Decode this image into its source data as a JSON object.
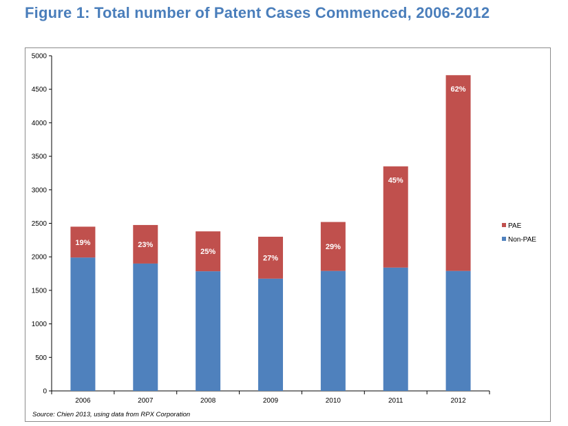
{
  "title": "Figure 1: Total number of Patent Cases Commenced, 2006-2012",
  "source": "Source: Chien 2013, using data from RPX Corporation",
  "colors": {
    "title": "#4a7ebb",
    "pae": "#c0504d",
    "non_pae": "#4f81bd"
  },
  "chart_data": {
    "type": "bar",
    "stacked": true,
    "categories": [
      "2006",
      "2007",
      "2008",
      "2009",
      "2010",
      "2011",
      "2012"
    ],
    "series": [
      {
        "name": "Non-PAE",
        "values": [
          1990,
          1900,
          1785,
          1675,
          1790,
          1840,
          1790
        ]
      },
      {
        "name": "PAE",
        "values": [
          460,
          575,
          595,
          625,
          730,
          1510,
          2920
        ]
      }
    ],
    "data_labels": [
      "19%",
      "23%",
      "25%",
      "27%",
      "29%",
      "45%",
      "62%"
    ],
    "ylim": [
      0,
      5000
    ],
    "yticks": [
      0,
      500,
      1000,
      1500,
      2000,
      2500,
      3000,
      3500,
      4000,
      4500,
      5000
    ],
    "legend": [
      "PAE",
      "Non-PAE"
    ],
    "legend_position": "right",
    "grid": false
  }
}
